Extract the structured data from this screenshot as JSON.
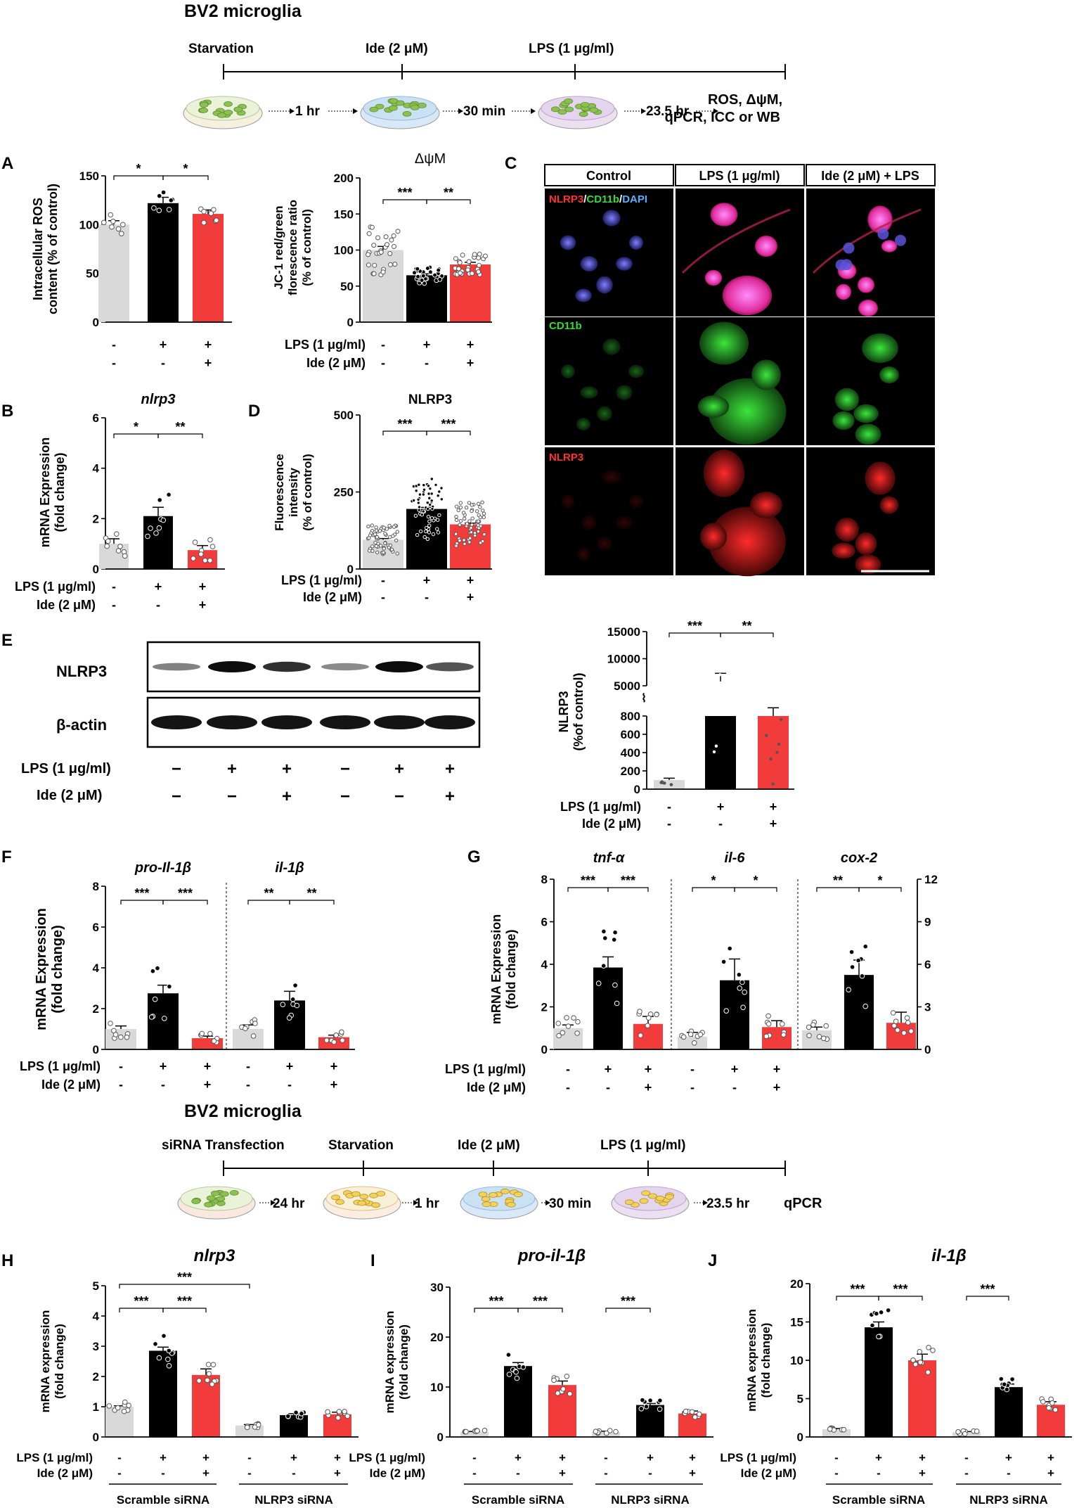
{
  "colors": {
    "control": "#d9d9d9",
    "lps": "#000000",
    "ide": "#f23b3b",
    "green_cell": "#8cc152",
    "yellow_cell": "#f2d25c"
  },
  "timeline1": {
    "title": "BV2 microglia",
    "events": [
      "Starvation",
      "Ide (2 μM)",
      "LPS (1 μg/ml)"
    ],
    "durations": [
      "1 hr",
      "30 min",
      "23.5 hr"
    ],
    "outputs": [
      "ROS, ΔψM,",
      "qPCR, ICC or WB"
    ]
  },
  "timeline2": {
    "title": "BV2 microglia",
    "events": [
      "siRNA Transfection",
      "Starvation",
      "Ide (2 μM)",
      "LPS (1 μg/ml)"
    ],
    "durations": [
      "24 hr",
      "1 hr",
      "30 min",
      "23.5 hr"
    ],
    "output": "qPCR"
  },
  "panel_letters": [
    "A",
    "B",
    "C",
    "D",
    "E",
    "F",
    "G",
    "H",
    "I",
    "J"
  ],
  "treat": {
    "lps_label": "LPS (1 μg/ml)",
    "ide_label": "Ide (2 μM)",
    "lps": [
      "-",
      "+",
      "+"
    ],
    "ide": [
      "-",
      "-",
      "+"
    ],
    "lps6": [
      "-",
      "+",
      "+",
      "-",
      "+",
      "+"
    ],
    "ide6": [
      "-",
      "-",
      "+",
      "-",
      "-",
      "+"
    ],
    "wb_lps": [
      "−",
      "+",
      "+",
      "−",
      "+",
      "+"
    ],
    "wb_ide": [
      "−",
      "−",
      "+",
      "−",
      "−",
      "+"
    ]
  },
  "micrograph": {
    "columns": [
      "Control",
      "LPS (1 μg/ml)",
      "Ide (2 μM) + LPS"
    ],
    "rows": [
      "NLRP3/CD11b/DAPI",
      "CD11b",
      "NLRP3"
    ],
    "merge_parts": [
      "NLRP3",
      "/",
      "CD11b",
      "/",
      "DAPI"
    ]
  },
  "western": {
    "bands": [
      "NLRP3",
      "β-actin"
    ]
  },
  "chart_data": [
    {
      "id": "A1",
      "type": "bar",
      "categories": [
        "Control",
        "LPS",
        "Ide+LPS"
      ],
      "values": [
        100,
        122,
        111
      ],
      "errors": [
        4,
        6,
        4
      ],
      "ylabel": "Intracellular ROS content (% of control)",
      "ylim": [
        0,
        150
      ],
      "yticks": [
        "0",
        "50",
        "100",
        "150"
      ],
      "significance": [
        "*",
        "*"
      ]
    },
    {
      "id": "A2",
      "type": "bar",
      "title": "ΔψM",
      "categories": [
        "Control",
        "LPS",
        "Ide+LPS"
      ],
      "values": [
        100,
        65,
        80
      ],
      "errors": [
        5,
        2,
        3
      ],
      "ylabel": "JC-1 red/green florescence ratio (% of control)",
      "ylim": [
        0,
        200
      ],
      "yticks": [
        "0",
        "50",
        "100",
        "150",
        "200"
      ],
      "significance": [
        "***",
        "**"
      ]
    },
    {
      "id": "B",
      "type": "bar",
      "title": "nlrp3",
      "categories": [
        "Control",
        "LPS",
        "Ide+LPS"
      ],
      "values": [
        1.0,
        2.1,
        0.75
      ],
      "errors": [
        0.2,
        0.35,
        0.18
      ],
      "ylabel": "mRNA Expression (fold change)",
      "ylim": [
        0,
        6
      ],
      "yticks": [
        "0",
        "2",
        "4",
        "6"
      ],
      "significance": [
        "*",
        "**"
      ]
    },
    {
      "id": "D",
      "type": "bar",
      "title": "NLRP3",
      "categories": [
        "Control",
        "LPS",
        "Ide+LPS"
      ],
      "values": [
        95,
        195,
        145
      ],
      "errors": [
        4,
        5,
        4
      ],
      "ylabel": "Fluorescence intensity (% of control)",
      "ylim": [
        0,
        500
      ],
      "yticks": [
        "0",
        "250",
        "500"
      ],
      "significance": [
        "***",
        "***"
      ]
    },
    {
      "id": "E",
      "type": "bar",
      "categories": [
        "Control",
        "LPS",
        "Ide+LPS"
      ],
      "values": [
        100,
        5800,
        800
      ],
      "errors": [
        20,
        1500,
        90
      ],
      "ylabel": "NLRP3 (%of control)",
      "axis_break": [
        800,
        5000
      ],
      "yticks_lower": [
        "0",
        "200",
        "400",
        "600",
        "800"
      ],
      "yticks_upper": [
        "5000",
        "10000",
        "15000"
      ],
      "significance": [
        "***",
        "**"
      ]
    },
    {
      "id": "F",
      "type": "bar",
      "genes": [
        "pro-Il-1β",
        "il-1β"
      ],
      "categories": [
        "Control",
        "LPS",
        "Ide+LPS"
      ],
      "series": [
        {
          "name": "pro-Il-1β",
          "values": [
            1.0,
            2.75,
            0.55
          ],
          "errors": [
            0.15,
            0.4,
            0.1
          ]
        },
        {
          "name": "il-1β",
          "values": [
            1.0,
            2.4,
            0.6
          ],
          "errors": [
            0.2,
            0.45,
            0.1
          ]
        }
      ],
      "ylabel": "mRNA Expression (fold change)",
      "ylim": [
        0,
        8
      ],
      "yticks": [
        "0",
        "2",
        "4",
        "6",
        "8"
      ],
      "significance": [
        [
          "***",
          "***"
        ],
        [
          "**",
          "**"
        ]
      ]
    },
    {
      "id": "G",
      "type": "bar",
      "genes": [
        "tnf-α",
        "il-6",
        "cox-2"
      ],
      "categories": [
        "Control",
        "LPS",
        "Ide+LPS"
      ],
      "series": [
        {
          "name": "tnf-α",
          "values": [
            1.0,
            3.85,
            1.2
          ],
          "errors": [
            0.15,
            0.5,
            0.35
          ]
        },
        {
          "name": "il-6",
          "values": [
            0.6,
            3.25,
            1.05
          ],
          "errors": [
            0.2,
            1.0,
            0.3
          ]
        },
        {
          "name": "cox-2",
          "values": [
            0.9,
            3.5,
            1.25
          ],
          "errors": [
            0.15,
            0.7,
            0.5
          ]
        }
      ],
      "ylabel": "mRNA Expression (fold change)",
      "ylim": [
        0,
        8
      ],
      "yticks": [
        "0",
        "2",
        "4",
        "6",
        "8"
      ],
      "y2lim": [
        0,
        12
      ],
      "y2ticks": [
        "0",
        "3",
        "6",
        "9",
        "12"
      ],
      "significance": [
        [
          "***",
          "***"
        ],
        [
          "*",
          "*"
        ],
        [
          "**",
          "*"
        ]
      ]
    },
    {
      "id": "H",
      "type": "bar",
      "title": "nlrp3",
      "groups": [
        "Scramble siRNA",
        "NLRP3 siRNA"
      ],
      "values": [
        1.0,
        2.85,
        2.05,
        0.38,
        0.72,
        0.75
      ],
      "errors": [
        0.03,
        0.12,
        0.2,
        0.03,
        0.05,
        0.07
      ],
      "ylabel": "mRNA expression (fold change)",
      "ylim": [
        0,
        5
      ],
      "yticks": [
        "0",
        "1",
        "2",
        "3",
        "4",
        "5"
      ],
      "significance": [
        "***",
        "***",
        "***"
      ]
    },
    {
      "id": "I",
      "type": "bar",
      "title": "pro-il-1β",
      "groups": [
        "Scramble siRNA",
        "NLRP3 siRNA"
      ],
      "values": [
        1.0,
        14.2,
        10.4,
        1.0,
        6.4,
        4.7
      ],
      "errors": [
        0.1,
        0.7,
        0.8,
        0.15,
        0.3,
        0.5
      ],
      "ylabel": "mRNA expression (fold change)",
      "ylim": [
        0,
        30
      ],
      "yticks": [
        "0",
        "10",
        "20",
        "30"
      ],
      "significance": [
        "***",
        "***",
        "***"
      ]
    },
    {
      "id": "J",
      "type": "bar",
      "title": "il-1β",
      "groups": [
        "Scramble siRNA",
        "NLRP3 siRNA"
      ],
      "values": [
        1.0,
        14.3,
        10.0,
        0.6,
        6.5,
        4.2
      ],
      "errors": [
        0.1,
        0.7,
        0.8,
        0.1,
        0.4,
        0.4
      ],
      "ylabel": "mRNA expression (fold change)",
      "ylim": [
        0,
        20
      ],
      "yticks": [
        "0",
        "5",
        "10",
        "15",
        "20"
      ],
      "significance": [
        "***",
        "***",
        "***"
      ]
    }
  ]
}
